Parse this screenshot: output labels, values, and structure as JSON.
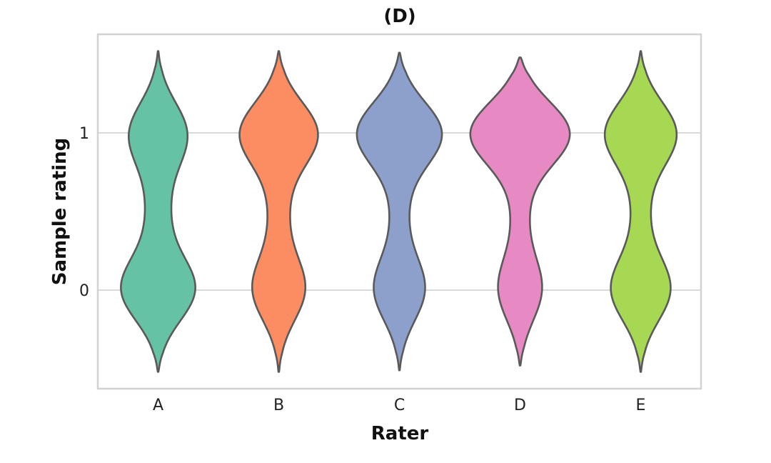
{
  "chart_data": {
    "type": "violin",
    "title": "(D)",
    "xlabel": "Rater",
    "ylabel": "Sample rating",
    "categories": [
      "A",
      "B",
      "C",
      "D",
      "E"
    ],
    "yticks": [
      0,
      1
    ],
    "ylim": [
      -0.62,
      1.62
    ],
    "grid": true,
    "colors": [
      "#66c2a5",
      "#fc8d62",
      "#8da0cb",
      "#e78ac3",
      "#a6d854"
    ],
    "series": [
      {
        "category": "A",
        "min": -0.52,
        "max": 1.52,
        "mode_low": 0,
        "mode_high": 1,
        "density_low": 0.58,
        "density_high": 0.45,
        "density_mid": 0.22
      },
      {
        "category": "B",
        "min": -0.52,
        "max": 1.52,
        "mode_low": 0,
        "mode_high": 1,
        "density_low": 0.41,
        "density_high": 0.62,
        "density_mid": 0.19
      },
      {
        "category": "C",
        "min": -0.51,
        "max": 1.51,
        "mode_low": 0,
        "mode_high": 1,
        "density_low": 0.4,
        "density_high": 0.68,
        "density_mid": 0.17
      },
      {
        "category": "D",
        "min": -0.48,
        "max": 1.48,
        "mode_low": 0,
        "mode_high": 1,
        "density_low": 0.34,
        "density_high": 0.8,
        "density_mid": 0.17
      },
      {
        "category": "E",
        "min": -0.52,
        "max": 1.52,
        "mode_low": 0,
        "mode_high": 1,
        "density_low": 0.47,
        "density_high": 0.57,
        "density_mid": 0.17
      }
    ]
  }
}
